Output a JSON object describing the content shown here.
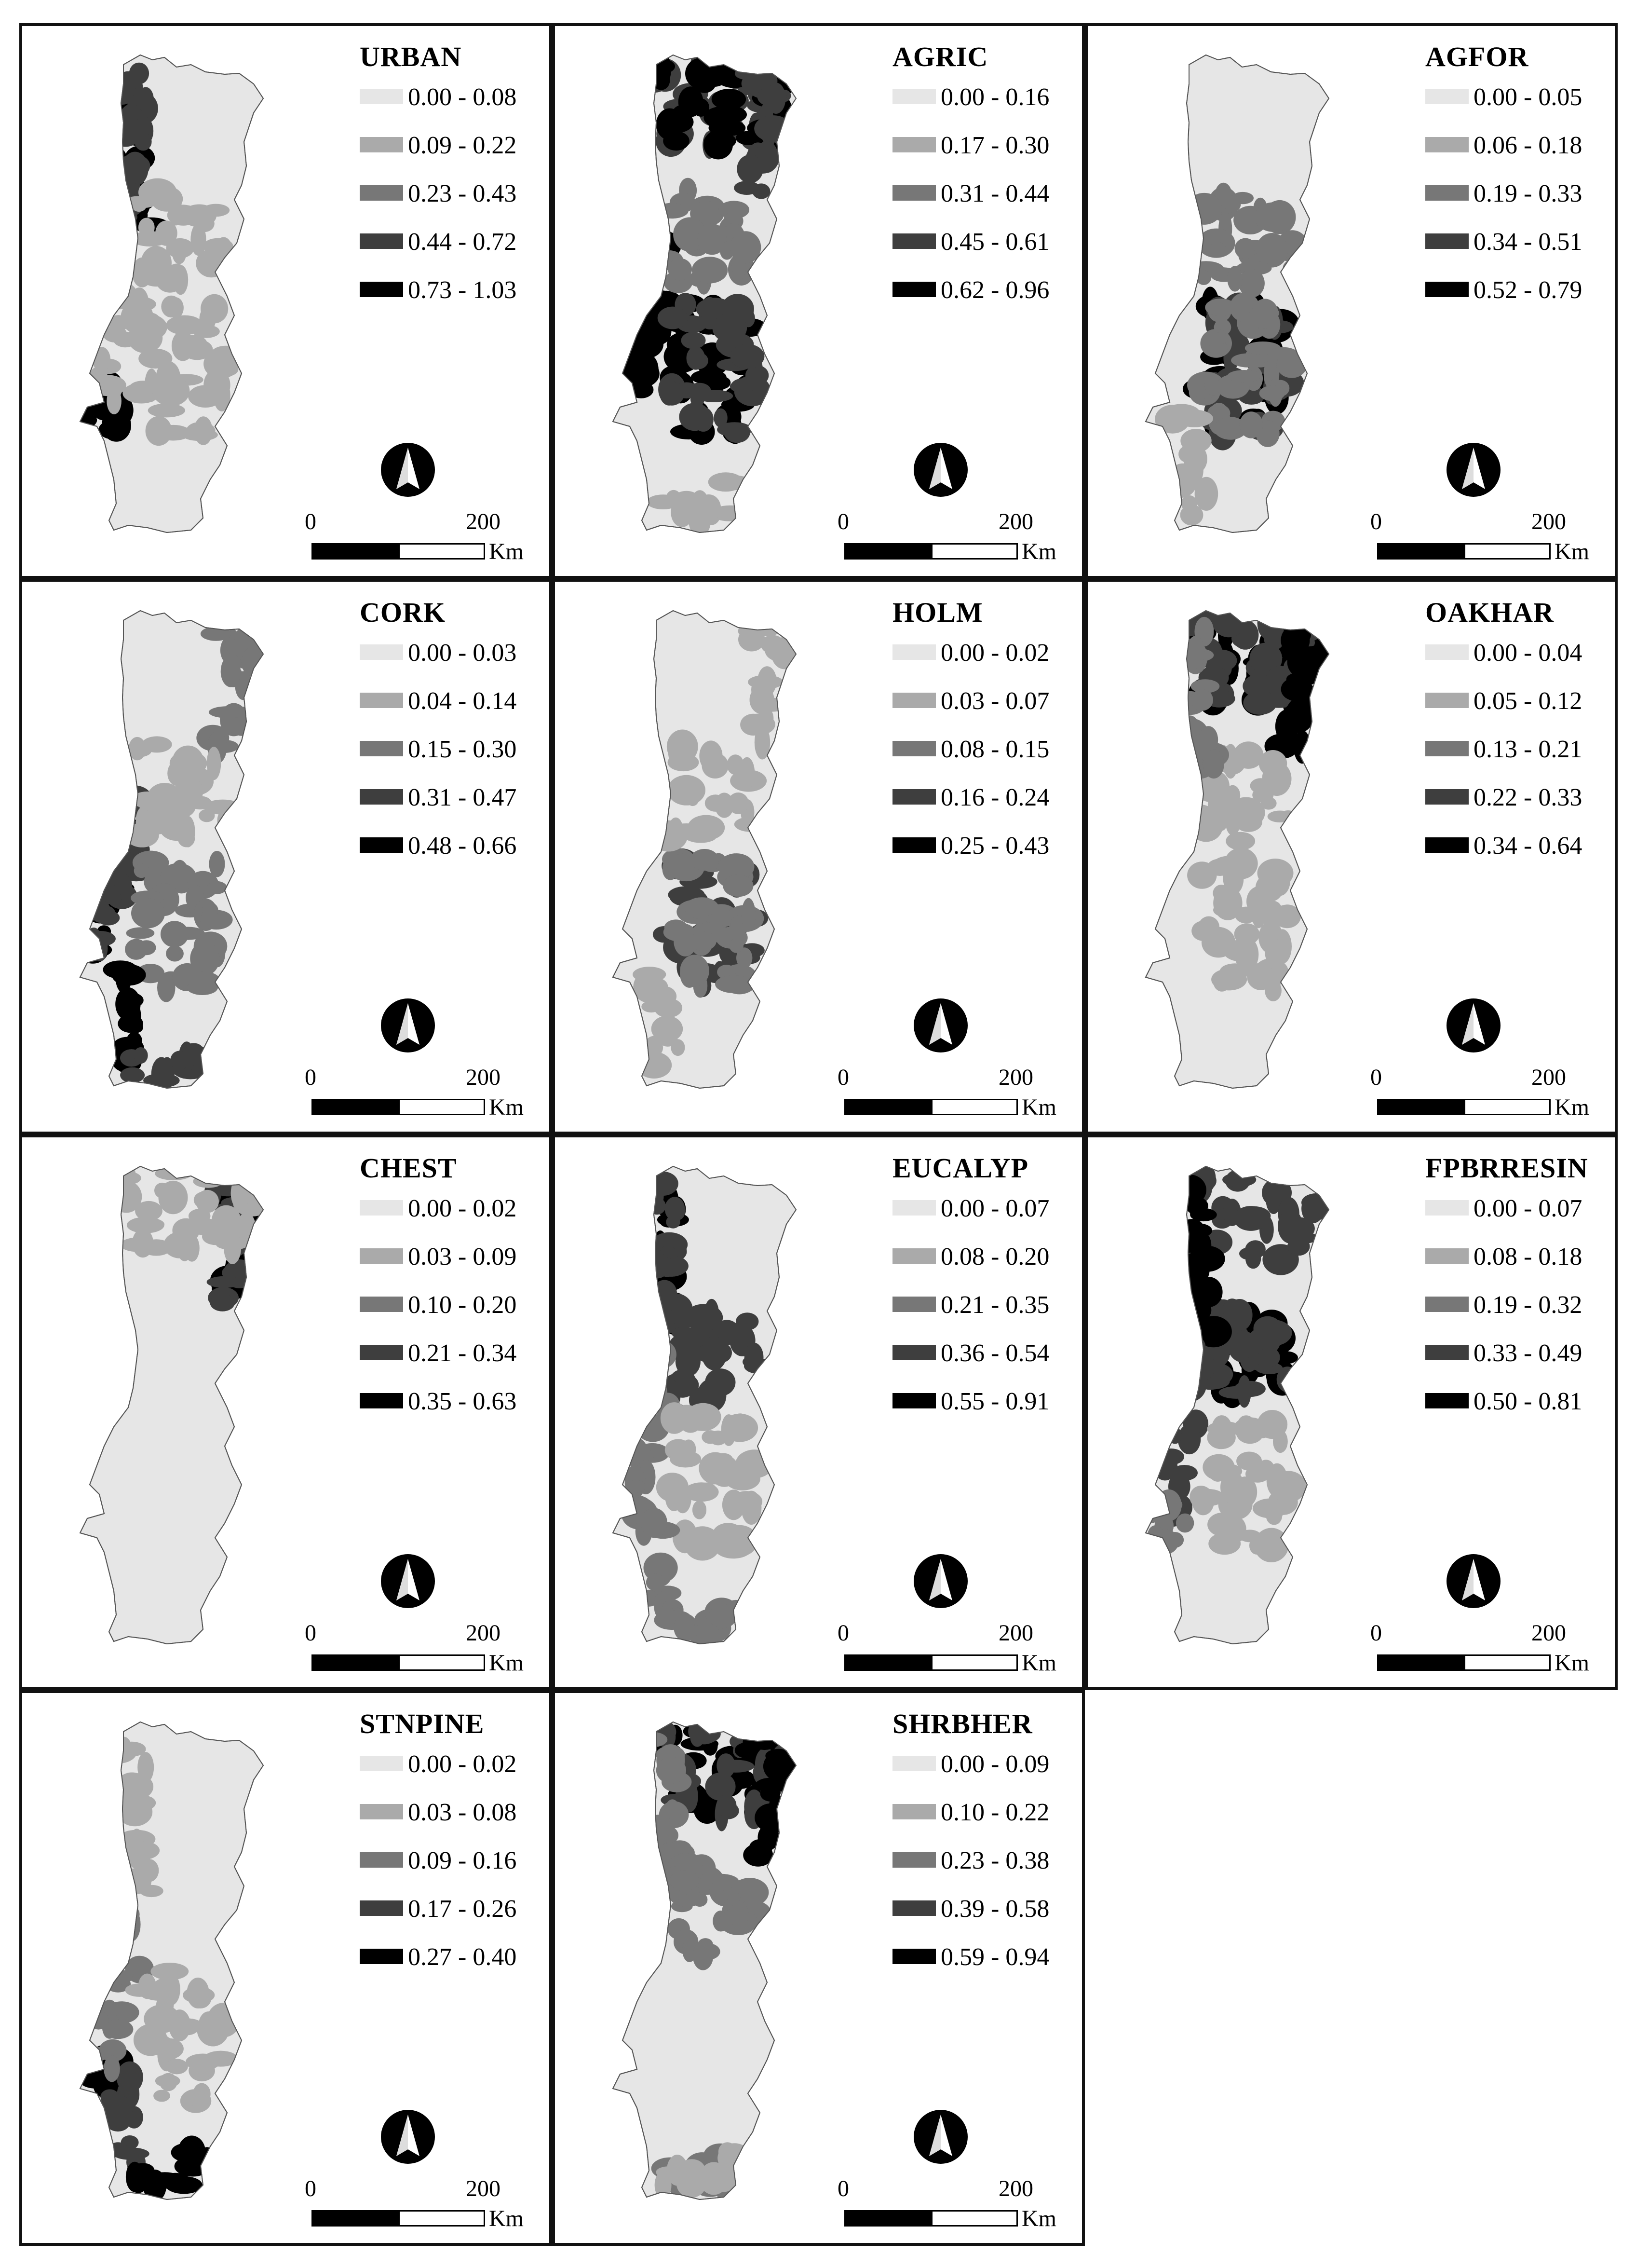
{
  "palette": [
    "#e6e6e6",
    "#aaaaaa",
    "#777777",
    "#3e3e3e",
    "#000000"
  ],
  "scale_bar": {
    "zero": "0",
    "max": "200",
    "unit": "Km"
  },
  "north_arrow": "north-arrow-icon",
  "panels": [
    {
      "title": "URBAN",
      "classes": [
        "0.00 - 0.08",
        "0.09 - 0.22",
        "0.23 - 0.43",
        "0.44 - 0.72",
        "0.73 - 1.03"
      ]
    },
    {
      "title": "AGRIC",
      "classes": [
        "0.00 - 0.16",
        "0.17 - 0.30",
        "0.31 - 0.44",
        "0.45 - 0.61",
        "0.62 - 0.96"
      ]
    },
    {
      "title": "AGFOR",
      "classes": [
        "0.00 - 0.05",
        "0.06 - 0.18",
        "0.19 - 0.33",
        "0.34 - 0.51",
        "0.52 - 0.79"
      ]
    },
    {
      "title": "CORK",
      "classes": [
        "0.00 - 0.03",
        "0.04 - 0.14",
        "0.15 - 0.30",
        "0.31 - 0.47",
        "0.48 - 0.66"
      ]
    },
    {
      "title": "HOLM",
      "classes": [
        "0.00 - 0.02",
        "0.03 - 0.07",
        "0.08 - 0.15",
        "0.16 - 0.24",
        "0.25 - 0.43"
      ]
    },
    {
      "title": "OAKHAR",
      "classes": [
        "0.00 - 0.04",
        "0.05 - 0.12",
        "0.13 - 0.21",
        "0.22 - 0.33",
        "0.34 - 0.64"
      ]
    },
    {
      "title": "CHEST",
      "classes": [
        "0.00 - 0.02",
        "0.03 - 0.09",
        "0.10 - 0.20",
        "0.21 - 0.34",
        "0.35 - 0.63"
      ]
    },
    {
      "title": "EUCALYP",
      "classes": [
        "0.00 - 0.07",
        "0.08 - 0.20",
        "0.21 - 0.35",
        "0.36 - 0.54",
        "0.55 - 0.91"
      ]
    },
    {
      "title": "FPBRRESIN",
      "classes": [
        "0.00 - 0.07",
        "0.08 - 0.18",
        "0.19 - 0.32",
        "0.33 - 0.49",
        "0.50 - 0.81"
      ]
    },
    {
      "title": "STNPINE",
      "classes": [
        "0.00 - 0.02",
        "0.03 - 0.08",
        "0.09 - 0.16",
        "0.17 - 0.26",
        "0.27 - 0.40"
      ]
    },
    {
      "title": "SHRBHER",
      "classes": [
        "0.00 - 0.09",
        "0.10 - 0.22",
        "0.23 - 0.38",
        "0.39 - 0.58",
        "0.59 - 0.94"
      ]
    }
  ]
}
